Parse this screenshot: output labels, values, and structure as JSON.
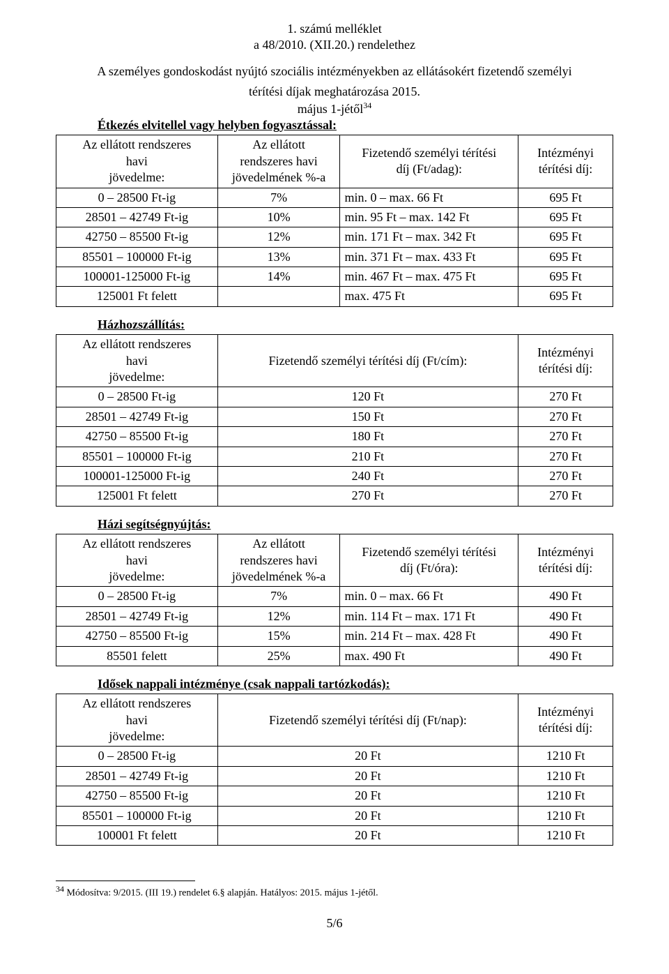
{
  "header": {
    "attachment": "1. számú melléklet",
    "decree": "a 48/2010. (XII.20.) rendelethez",
    "intro_line1": "A személyes gondoskodást nyújtó szociális intézményekben az ellátásokért fizetendő személyi",
    "intro_line2": "térítési díjak meghatározása 2015.",
    "effective": "május 1-jétől",
    "effective_sup": "34"
  },
  "columns4": {
    "c1_l1": "Az ellátott rendszeres",
    "c1_l2": "havi",
    "c1_l3": "jövedelme:",
    "c2_l1": "Az ellátott",
    "c2_l2": "rendszeres havi",
    "c2_l3": "jövedelmének %-a",
    "c3_adag_l1": "Fizetendő személyi térítési",
    "c3_adag_l2": "díj (Ft/adag):",
    "c3_ora_l1": "Fizetendő személyi térítési",
    "c3_ora_l2": "díj (Ft/óra):",
    "c4_l1": "Intézményi",
    "c4_l2": "térítési díj:"
  },
  "columns3": {
    "c2_cim": "Fizetendő személyi térítési díj (Ft/cím):",
    "c2_nap": "Fizetendő személyi térítési díj (Ft/nap):"
  },
  "section1": {
    "title": "Étkezés elvitellel vagy helyben fogyasztással:",
    "rows": [
      {
        "a": "0 – 28500 Ft-ig",
        "b": "7%",
        "c": "min.    0  – max.    66 Ft",
        "d": "695 Ft"
      },
      {
        "a": "28501 – 42749 Ft-ig",
        "b": "10%",
        "c": "min.   95 Ft – max. 142 Ft",
        "d": "695 Ft"
      },
      {
        "a": "42750 – 85500 Ft-ig",
        "b": "12%",
        "c": "min. 171 Ft – max. 342 Ft",
        "d": "695 Ft"
      },
      {
        "a": "85501 – 100000 Ft-ig",
        "b": "13%",
        "c": "min. 371 Ft – max. 433 Ft",
        "d": "695 Ft"
      },
      {
        "a": "100001-125000 Ft-ig",
        "b": "14%",
        "c": "min. 467 Ft – max. 475 Ft",
        "d": "695 Ft"
      },
      {
        "a": "125001 Ft felett",
        "b": "",
        "c": "max. 475 Ft",
        "d": "695 Ft"
      }
    ]
  },
  "section2": {
    "title": "Házhozszállítás:",
    "rows": [
      {
        "a": "0 – 28500 Ft-ig",
        "b": "120 Ft",
        "c": "270 Ft"
      },
      {
        "a": "28501 – 42749 Ft-ig",
        "b": "150 Ft",
        "c": "270 Ft"
      },
      {
        "a": "42750 – 85500 Ft-ig",
        "b": "180 Ft",
        "c": "270 Ft"
      },
      {
        "a": "85501 – 100000 Ft-ig",
        "b": "210 Ft",
        "c": "270 Ft"
      },
      {
        "a": "100001-125000 Ft-ig",
        "b": "240 Ft",
        "c": "270 Ft"
      },
      {
        "a": "125001 Ft felett",
        "b": "270 Ft",
        "c": "270 Ft"
      }
    ]
  },
  "section3": {
    "title": "Házi segítségnyújtás:",
    "rows": [
      {
        "a": "0 – 28500 Ft-ig",
        "b": "7%",
        "c": "min.    0  – max.   66 Ft",
        "d": "490 Ft"
      },
      {
        "a": "28501 – 42749 Ft-ig",
        "b": "12%",
        "c": "min. 114 Ft – max. 171 Ft",
        "d": "490 Ft"
      },
      {
        "a": "42750 – 85500 Ft-ig",
        "b": "15%",
        "c": "min. 214 Ft – max. 428 Ft",
        "d": "490 Ft"
      },
      {
        "a": "85501 felett",
        "b": "25%",
        "c": "max. 490 Ft",
        "d": "490 Ft"
      }
    ]
  },
  "section4": {
    "title": "Idősek nappali intézménye (csak nappali tartózkodás):",
    "rows": [
      {
        "a": "0 – 28500 Ft-ig",
        "b": "20 Ft",
        "c": "1210 Ft"
      },
      {
        "a": "28501 – 42749 Ft-ig",
        "b": "20 Ft",
        "c": "1210 Ft"
      },
      {
        "a": "42750 – 85500 Ft-ig",
        "b": "20 Ft",
        "c": "1210 Ft"
      },
      {
        "a": "85501 – 100000 Ft-ig",
        "b": "20 Ft",
        "c": "1210 Ft"
      },
      {
        "a": "100001 Ft felett",
        "b": "20 Ft",
        "c": "1210 Ft"
      }
    ]
  },
  "footnote": {
    "num": "34",
    "text": " Módosítva: 9/2015. (III 19.) rendelet 6.§ alapján. Hatályos: 2015. május 1-jétől."
  },
  "pagenum": "5/6",
  "widths": {
    "t4_c1": "29%",
    "t4_c2": "22%",
    "t4_c3": "32%",
    "t4_c4": "17%",
    "t3_c1": "29%",
    "t3_c2": "54%",
    "t3_c3": "17%"
  }
}
